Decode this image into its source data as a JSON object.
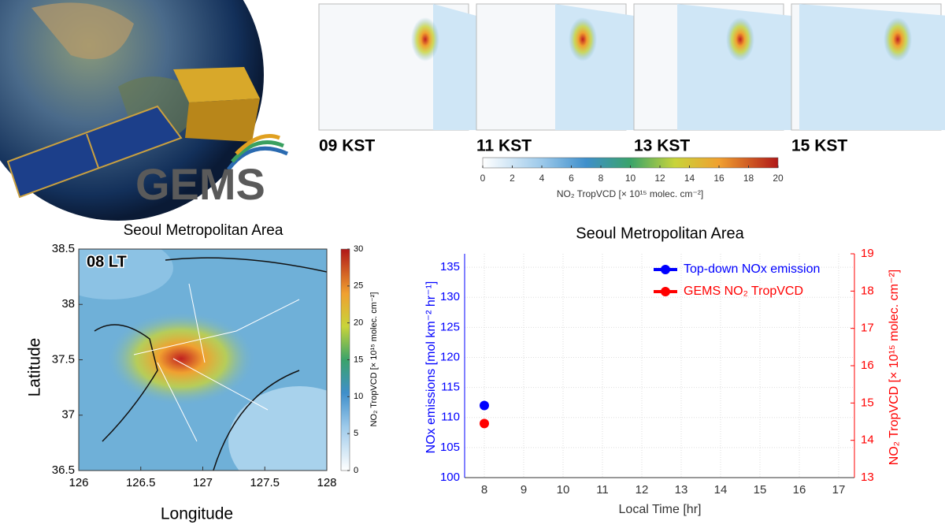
{
  "logo": "GEMS",
  "overview": {
    "panels": [
      "09 KST",
      "11 KST",
      "13 KST",
      "15 KST"
    ],
    "colorbar": {
      "lim": [
        0,
        20
      ],
      "ticks": [
        0,
        2,
        4,
        6,
        8,
        10,
        12,
        14,
        16,
        18,
        20
      ],
      "label": "NO₂ TropVCD [× 10¹⁵ molec. cm⁻²]"
    }
  },
  "seoul_map": {
    "title": "Seoul Metropolitan Area",
    "time_label": "08 LT",
    "xlabel": "Longitude",
    "ylabel": "Latitude",
    "xlim": [
      126,
      128
    ],
    "xticks": [
      126,
      126.5,
      127,
      127.5,
      128
    ],
    "ylim": [
      36.5,
      38.5
    ],
    "yticks": [
      36.5,
      37,
      37.5,
      38,
      38.5
    ],
    "colorbar": {
      "lim": [
        0,
        30
      ],
      "ticks": [
        0,
        5,
        10,
        15,
        20,
        25,
        30
      ],
      "label": "NO₂ TropVCD [× 10¹⁵ molec. cm⁻²]"
    }
  },
  "chart_data": {
    "type": "scatter",
    "title": "Seoul Metropolitan Area",
    "xlabel": "Local Time [hr]",
    "ylabel": "NOx emissions [mol km⁻² hr⁻¹]",
    "y2label": "NO₂ TropVCD [× 10¹⁵ molec. cm⁻²]",
    "xlim": [
      7.5,
      17.4
    ],
    "xticks": [
      8,
      9,
      10,
      11,
      12,
      13,
      14,
      15,
      16,
      17
    ],
    "ylim": [
      100,
      137.25
    ],
    "yticks": [
      100,
      105,
      110,
      115,
      120,
      125,
      130,
      135
    ],
    "y2lim": [
      13,
      19
    ],
    "y2ticks": [
      13,
      14,
      15,
      16,
      17,
      18,
      19
    ],
    "grid": true,
    "legend": "upper right",
    "series": [
      {
        "name": "Top-down NOx emission",
        "color": "#0000ff",
        "x": [
          8
        ],
        "values": [
          112
        ]
      },
      {
        "name": "GEMS NO₂ TropVCD",
        "color": "#ff0000",
        "axis": "y2",
        "x": [
          8
        ],
        "values": [
          14.45
        ]
      }
    ]
  }
}
